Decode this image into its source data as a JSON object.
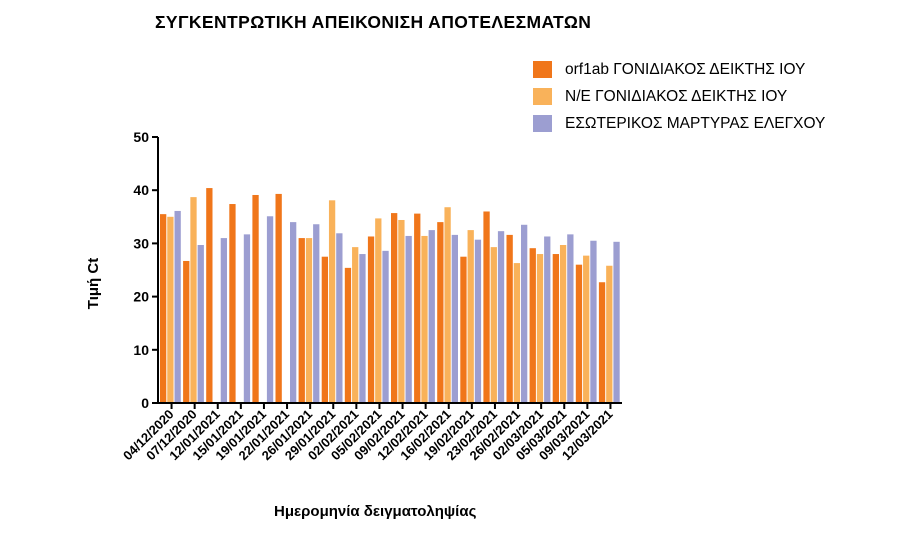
{
  "colors": {
    "orf1ab": "#f0761a",
    "ne": "#f9b25a",
    "control": "#9c9ed1",
    "axis": "#000000"
  },
  "chart_data": {
    "type": "bar",
    "title": "ΣΥΓΚΕΝΤΡΩΤΙΚΗ ΑΠΕΙΚΟΝΙΣΗ ΑΠΟΤΕΛΕΣΜΑΤΩΝ",
    "xlabel": "Ημερομηνία δειγματοληψίας",
    "ylabel": "Τιμή Ct",
    "ylim": [
      0,
      50
    ],
    "yticks": [
      "0",
      "10",
      "20",
      "30",
      "40",
      "50"
    ],
    "legend_position": "top-right",
    "grid": false,
    "tick_labels": [
      "04/12/2020",
      "07/12/2020",
      "12/01/2021",
      "15/01/2021",
      "19/01/2021",
      "22/01/2021",
      "26/01/2021",
      "29/01/2021",
      "02/02/2021",
      "05/02/2021",
      "09/02/2021",
      "12/02/2021",
      "16/02/2021",
      "19/02/2021",
      "23/02/2021",
      "26/02/2021",
      "02/03/2021",
      "05/03/2021",
      "09/03/2021",
      "12/03/2021"
    ],
    "series": [
      {
        "name": "orf1ab ΓΟΝΙΔΙΑΚΟΣ ΔΕΙΚΤΗΣ ΙΟΥ",
        "color_key": "orf1ab",
        "values": [
          35.5,
          26.7,
          40.4,
          37.4,
          39.1,
          39.3,
          31.0,
          27.5,
          25.4,
          31.3,
          35.7,
          35.6,
          34.0,
          27.5,
          36.0,
          31.6,
          29.1,
          28.0,
          26.0,
          22.7
        ]
      },
      {
        "name": "N/E ΓΟΝΙΔΙΑΚΟΣ ΔΕΙΚΤΗΣ ΙΟΥ",
        "color_key": "ne",
        "values": [
          35.0,
          38.7,
          null,
          null,
          null,
          null,
          31.0,
          38.1,
          29.3,
          34.7,
          34.4,
          31.4,
          36.8,
          32.5,
          29.3,
          26.3,
          28.0,
          29.7,
          27.7,
          25.8
        ]
      },
      {
        "name": "ΕΣΩΤΕΡΙΚΟΣ ΜΑΡΤΥΡΑΣ ΕΛΕΓΧΟΥ",
        "color_key": "control",
        "values": [
          36.1,
          29.7,
          31.0,
          31.7,
          35.1,
          34.0,
          33.6,
          31.9,
          28.0,
          28.6,
          31.4,
          32.5,
          31.6,
          30.7,
          32.3,
          33.5,
          31.3,
          31.7,
          30.5,
          30.3
        ]
      }
    ]
  }
}
